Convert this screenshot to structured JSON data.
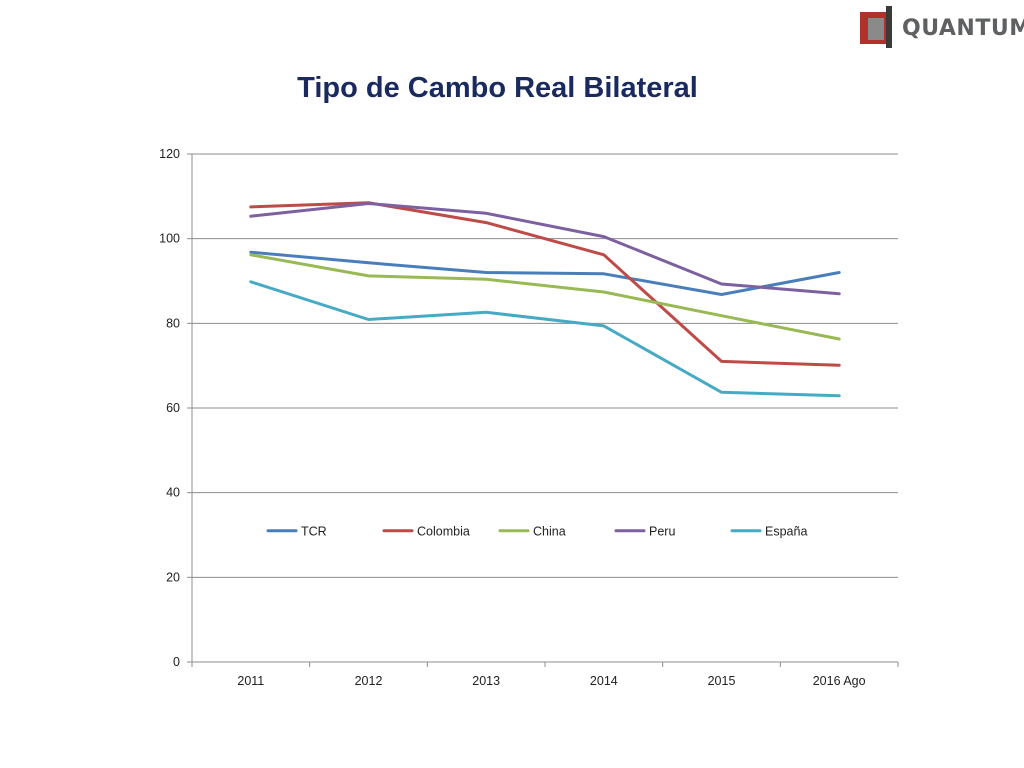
{
  "logo": {
    "text": "QUANTUM",
    "mark_colors": {
      "red": "#b0302c",
      "dark": "#3a3a3a",
      "grey": "#8a8a8a"
    }
  },
  "slide": {
    "title": "Tipo de Cambo Real Bilateral"
  },
  "chart_data": {
    "type": "line",
    "title": "Tipo de Cambo Real Bilateral",
    "categories": [
      "2011",
      "2012",
      "2013",
      "2014",
      "2015",
      "2016 Ago"
    ],
    "ylim": [
      0,
      120
    ],
    "yticks": [
      0,
      20,
      40,
      60,
      80,
      100,
      120
    ],
    "grid": true,
    "legend_position": "inside-middle",
    "series": [
      {
        "name": "TCR",
        "color": "#4a7ebb",
        "values": [
          96.8,
          94.3,
          92.0,
          91.7,
          86.8,
          92.0
        ]
      },
      {
        "name": "Colombia",
        "color": "#be4b48",
        "values": [
          107.5,
          108.5,
          103.8,
          96.2,
          71.0,
          70.1
        ]
      },
      {
        "name": "China",
        "color": "#98b954",
        "values": [
          96.2,
          91.2,
          90.4,
          87.4,
          81.8,
          76.3
        ]
      },
      {
        "name": "Peru",
        "color": "#7d60a0",
        "values": [
          105.3,
          108.3,
          106.0,
          100.5,
          89.3,
          87.0
        ]
      },
      {
        "name": "España",
        "color": "#46aac5",
        "values": [
          89.8,
          80.9,
          82.6,
          79.4,
          63.7,
          62.9
        ]
      }
    ]
  }
}
